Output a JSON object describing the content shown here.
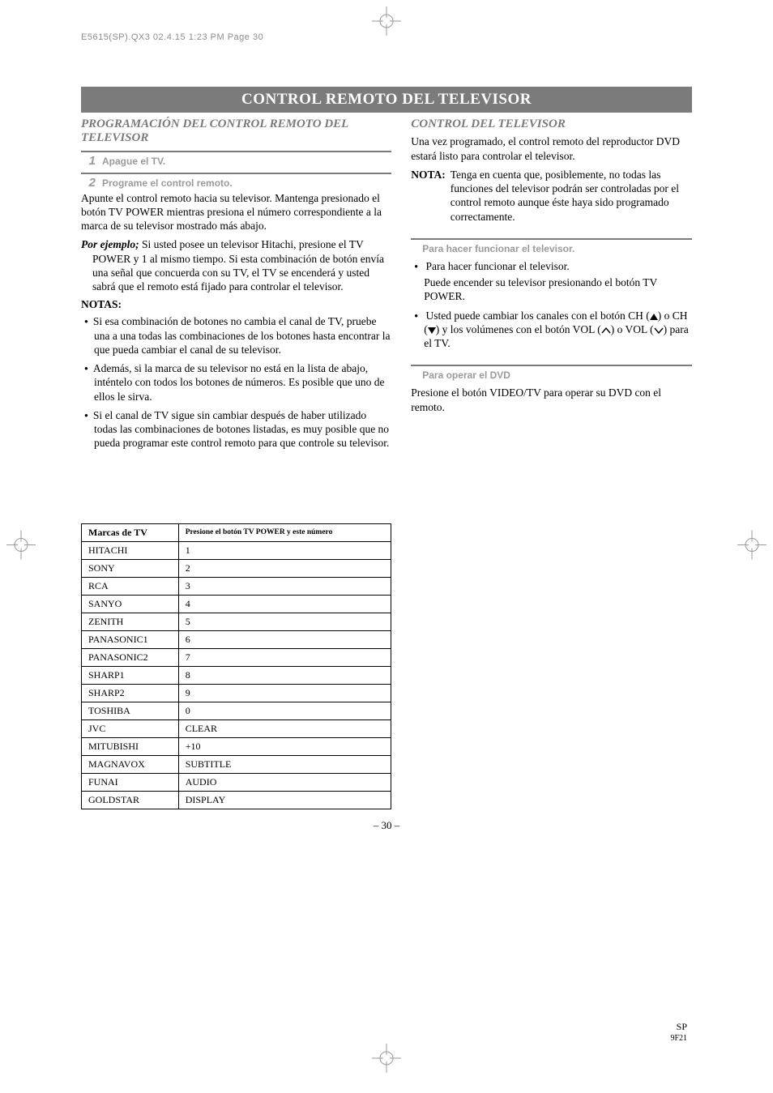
{
  "slugline": "E5615(SP).QX3  02.4.15 1:23 PM  Page 30",
  "title": "CONTROL REMOTO DEL TELEVISOR",
  "left": {
    "heading": "PROGRAMACIÓN DEL CONTROL REMOTO DEL TELEVISOR",
    "step1_num": "1",
    "step1_label": "Apague el TV.",
    "step2_num": "2",
    "step2_label": "Programe el control remoto.",
    "para1": "Apunte el control remoto hacia su televisor. Mantenga presionado el botón TV POWER mientras presiona el número correspondiente a la marca de su televisor mostrado más abajo.",
    "example_runin": "Por ejemplo;",
    "example_body": "Si usted posee un televisor Hitachi, presione el TV POWER y 1 al mismo tiempo. Si esta combinación de botón envía una señal que concuerda con su TV, el TV se encenderá y usted sabrá que el remoto está fijado para controlar el televisor.",
    "notas_head": "NOTAS:",
    "bullets": [
      "Si esa combinación de botones no cambia el canal de TV, pruebe una a una todas las combinaciones de los botones hasta encontrar la que pueda cambiar el canal de su televisor.",
      "Además, si la marca de su televisor no está en la lista de abajo, inténtelo con todos los botones de números. Es posible que uno de ellos le sirva.",
      "Si el canal de TV sigue sin cambiar después de haber utilizado todas las combinaciones de botones listadas, es muy posible que no pueda programar este control remoto para que controle su televisor."
    ],
    "table": {
      "col1": "Marcas de TV",
      "col2": "Presione el botón TV POWER y este número",
      "rows": [
        [
          "HITACHI",
          "1"
        ],
        [
          "SONY",
          "2"
        ],
        [
          "RCA",
          "3"
        ],
        [
          "SANYO",
          "4"
        ],
        [
          "ZENITH",
          "5"
        ],
        [
          "PANASONIC1",
          "6"
        ],
        [
          "PANASONIC2",
          "7"
        ],
        [
          "SHARP1",
          "8"
        ],
        [
          "SHARP2",
          "9"
        ],
        [
          "TOSHIBA",
          "0"
        ],
        [
          "JVC",
          "CLEAR"
        ],
        [
          "MITUBISHI",
          "+10"
        ],
        [
          "MAGNAVOX",
          "SUBTITLE"
        ],
        [
          "FUNAI",
          "AUDIO"
        ],
        [
          "GOLDSTAR",
          "DISPLAY"
        ]
      ]
    }
  },
  "right": {
    "heading": "CONTROL DEL TELEVISOR",
    "intro": "Una vez programado, el control remoto del reproductor DVD estará listo para controlar el televisor.",
    "nota_label": "NOTA:",
    "nota_body": "Tenga en cuenta que, posiblemente, no todas las funciones del televisor podrán ser controladas por el control remoto aunque éste haya sido programado correctamente.",
    "sub1_head": "Para hacer funcionar el televisor.",
    "sub1_b1": "Para hacer funcionar el televisor.",
    "sub1_b1_body": "Puede encender su televisor presionando el botón TV POWER.",
    "sub1_b2_pre": "Usted puede cambiar los canales con el botón CH (",
    "sub1_b2_mid1": ") o CH (",
    "sub1_b2_mid2": ") y los volúmenes con el botón VOL (",
    "sub1_b2_mid3": ") o VOL  (",
    "sub1_b2_post": ") para el TV.",
    "sub2_head": "Para operar el DVD",
    "sub2_body": "Presione el botón VIDEO/TV para operar su DVD con el remoto."
  },
  "page_number": "– 30 –",
  "foot_sp": "SP",
  "foot_code": "9F21"
}
